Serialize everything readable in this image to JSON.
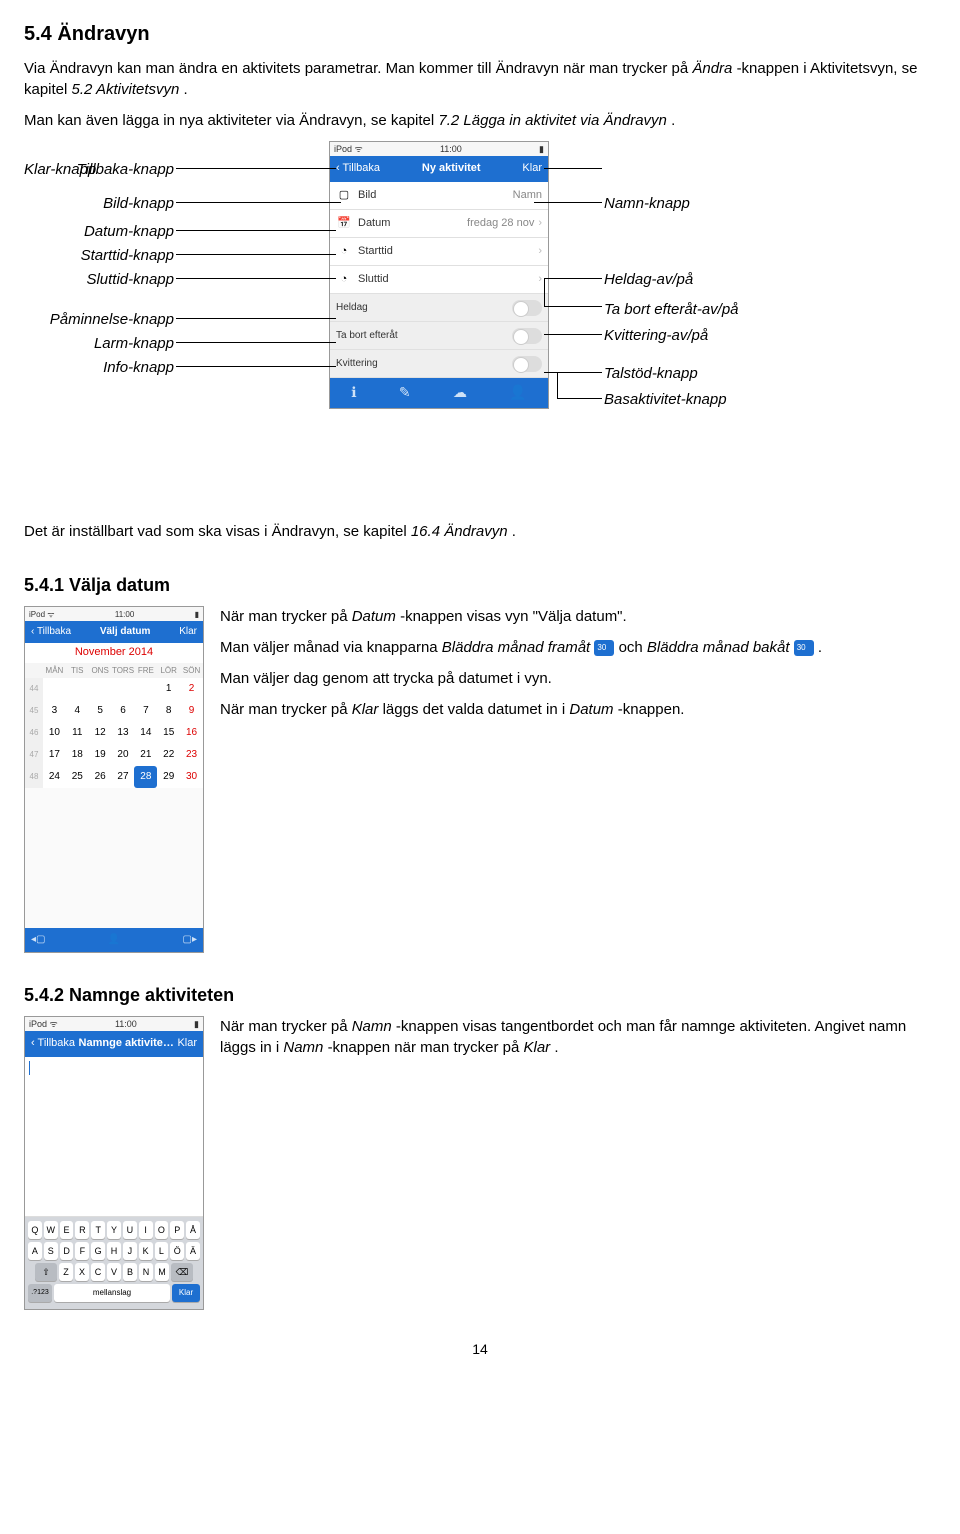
{
  "sec54": {
    "heading": "5.4 Ändravyn",
    "p1a": "Via Ändravyn kan man ändra en aktivitets parametrar. Man kommer till Ändravyn när man trycker på ",
    "p1b": "Ändra",
    "p1c": "-knappen i Aktivitetsvyn, se kapitel ",
    "p1d": "5.2 Aktivitetsvyn",
    "p1e": ".",
    "p2a": "Man kan även lägga in nya aktiviteter via Ändravyn, se kapitel ",
    "p2b": "7.2 Lägga in aktivitet via Ändravyn",
    "p2c": "."
  },
  "diagram": {
    "left": {
      "tillbaka": "Tillbaka-knapp",
      "bild": "Bild-knapp",
      "datum": "Datum-knapp",
      "starttid": "Starttid-knapp",
      "sluttid": "Sluttid-knapp",
      "paminnelse": "Påminnelse-knapp",
      "larm": "Larm-knapp",
      "info": "Info-knapp"
    },
    "right": {
      "klar": "Klar-knapp",
      "namn": "Namn-knapp",
      "heldag": "Heldag-av/på",
      "tabort": "Ta bort efteråt-av/på",
      "kvittering": "Kvittering-av/på",
      "talstod": "Talstöd-knapp",
      "basaktivitet": "Basaktivitet-knapp"
    },
    "phone": {
      "time": "11:00",
      "carrier": "iPod",
      "back": "Tillbaka",
      "title": "Ny aktivitet",
      "done": "Klar",
      "bild": "Bild",
      "namn_ph": "Namn",
      "datum": "Datum",
      "datum_val": "fredag 28 nov",
      "starttid": "Starttid",
      "sluttid": "Sluttid",
      "heldag": "Heldag",
      "tabort": "Ta bort efteråt",
      "kvittering": "Kvittering"
    }
  },
  "mid": {
    "p1a": "Det är inställbart vad som ska visas i Ändravyn, se kapitel ",
    "p1b": "16.4 Ändravyn",
    "p1c": "."
  },
  "sec541": {
    "heading": "5.4.1 Välja datum",
    "p1a": "När man trycker på ",
    "p1b": "Datum",
    "p1c": "-knappen visas vyn \"Välja datum\".",
    "p2a": "Man väljer månad via knapparna ",
    "p2b": "Bläddra månad framåt",
    "p2c": " och ",
    "p2d": "Bläddra månad bakåt",
    "p2e": ".",
    "p3": "Man väljer dag genom att trycka på datumet i vyn.",
    "p4a": "När man trycker på ",
    "p4b": "Klar",
    "p4c": " läggs det valda datumet in i ",
    "p4d": "Datum",
    "p4e": "-knappen.",
    "phone": {
      "back": "Tillbaka",
      "title": "Välj datum",
      "done": "Klar",
      "month": "November 2014",
      "days": [
        "MÅN",
        "TIS",
        "ONS",
        "TORS",
        "FRE",
        "LÖR",
        "SÖN"
      ],
      "weeks": [
        "44",
        "45",
        "46",
        "47",
        "48"
      ],
      "grid": [
        [
          "",
          "",
          "",
          "",
          "",
          "1",
          "2"
        ],
        [
          "3",
          "4",
          "5",
          "6",
          "7",
          "8",
          "9"
        ],
        [
          "10",
          "11",
          "12",
          "13",
          "14",
          "15",
          "16"
        ],
        [
          "17",
          "18",
          "19",
          "20",
          "21",
          "22",
          "23"
        ],
        [
          "24",
          "25",
          "26",
          "27",
          "28",
          "29",
          "30"
        ]
      ],
      "selected": "28",
      "reds": [
        "2",
        "9",
        "16",
        "23",
        "30"
      ]
    }
  },
  "sec542": {
    "heading": "5.4.2 Namnge aktiviteten",
    "p1a": "När man trycker på ",
    "p1b": "Namn",
    "p1c": "-knappen visas tangentbordet och man får namnge aktiviteten. Angivet namn läggs in i ",
    "p1d": "Namn",
    "p1e": "-knappen när man trycker på ",
    "p1f": "Klar",
    "p1g": ".",
    "phone": {
      "back": "Tillbaka",
      "title": "Namnge aktivite…",
      "done": "Klar",
      "rows": [
        [
          "Q",
          "W",
          "E",
          "R",
          "T",
          "Y",
          "U",
          "I",
          "O",
          "P",
          "Å"
        ],
        [
          "A",
          "S",
          "D",
          "F",
          "G",
          "H",
          "J",
          "K",
          "L",
          "Ö",
          "Ä"
        ],
        [
          "Z",
          "X",
          "C",
          "V",
          "B",
          "N",
          "M"
        ]
      ],
      "shift": "⇧",
      "bksp": "⌫",
      "numkey": ".?123",
      "space": "mellanslag",
      "enter": "Klar"
    }
  },
  "pageNum": "14"
}
